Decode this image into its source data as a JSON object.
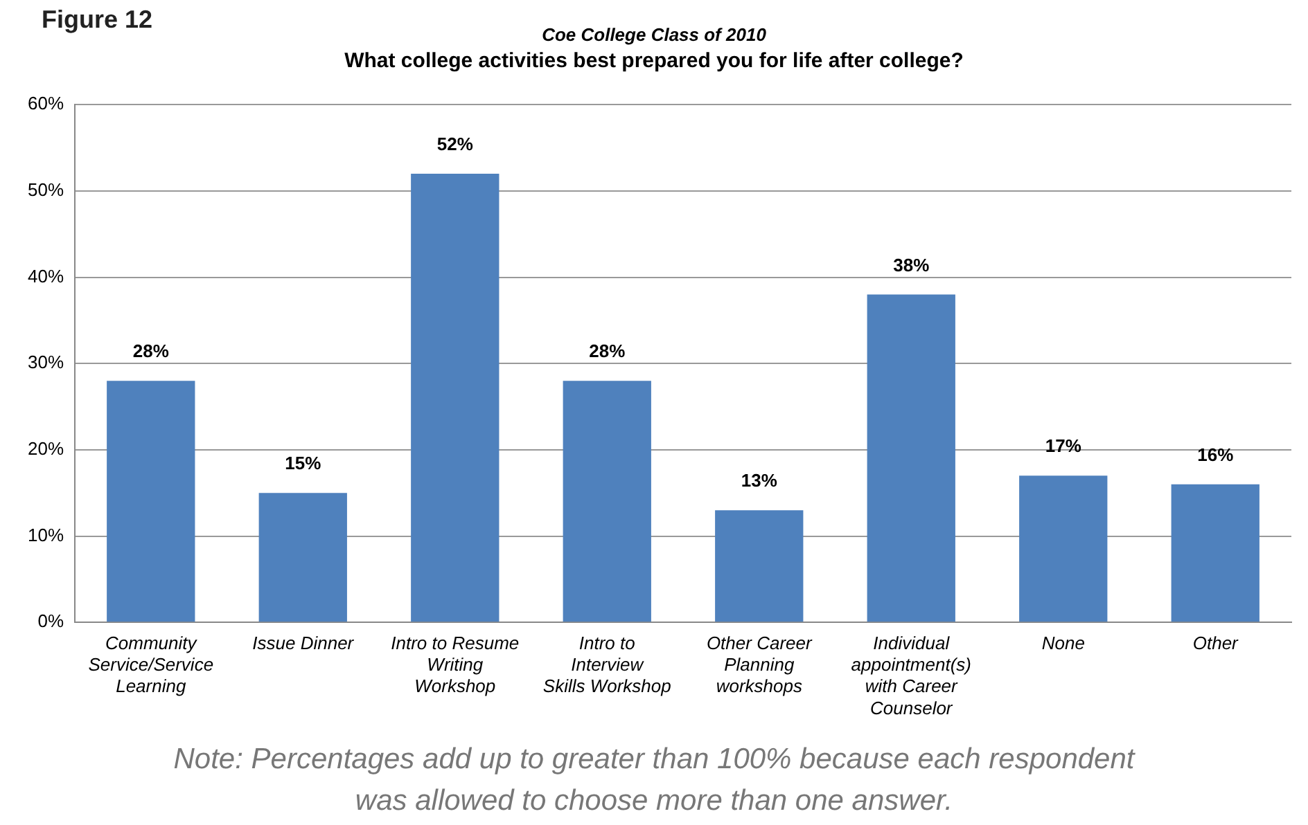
{
  "chart_data": {
    "type": "bar",
    "title": "Coe College Class of 2010",
    "subtitle": "What college activities best prepared you for life after college?",
    "categories": [
      "Community Service/Service Learning",
      "Issue Dinner",
      "Intro to Resume Writing Workshop",
      "Intro to Interview Skills Workshop",
      "Other Career Planning workshops",
      "Individual appointment(s) with Career Counselor",
      "None",
      "Other"
    ],
    "values": [
      28,
      15,
      52,
      28,
      13,
      38,
      17,
      16
    ],
    "color": "#4f81bd",
    "data_labels": true,
    "value_labels": [
      "28%",
      "15%",
      "52%",
      "28%",
      "13%",
      "38%",
      "17%",
      "16%"
    ],
    "ylim": [
      0,
      60
    ],
    "yticks": [
      {
        "value": 0,
        "label": "0%"
      },
      {
        "value": 10,
        "label": "10%"
      },
      {
        "value": 20,
        "label": "20%"
      },
      {
        "value": 30,
        "label": "30%"
      },
      {
        "value": 40,
        "label": "40%"
      },
      {
        "value": 50,
        "label": "50%"
      },
      {
        "value": 60,
        "label": "60%"
      }
    ],
    "grid": "y",
    "legend": false,
    "annotations": [
      "Figure 12",
      "Note: Percentages add up to greater than 100% because each respondent was allowed to choose more than one answer."
    ]
  }
}
